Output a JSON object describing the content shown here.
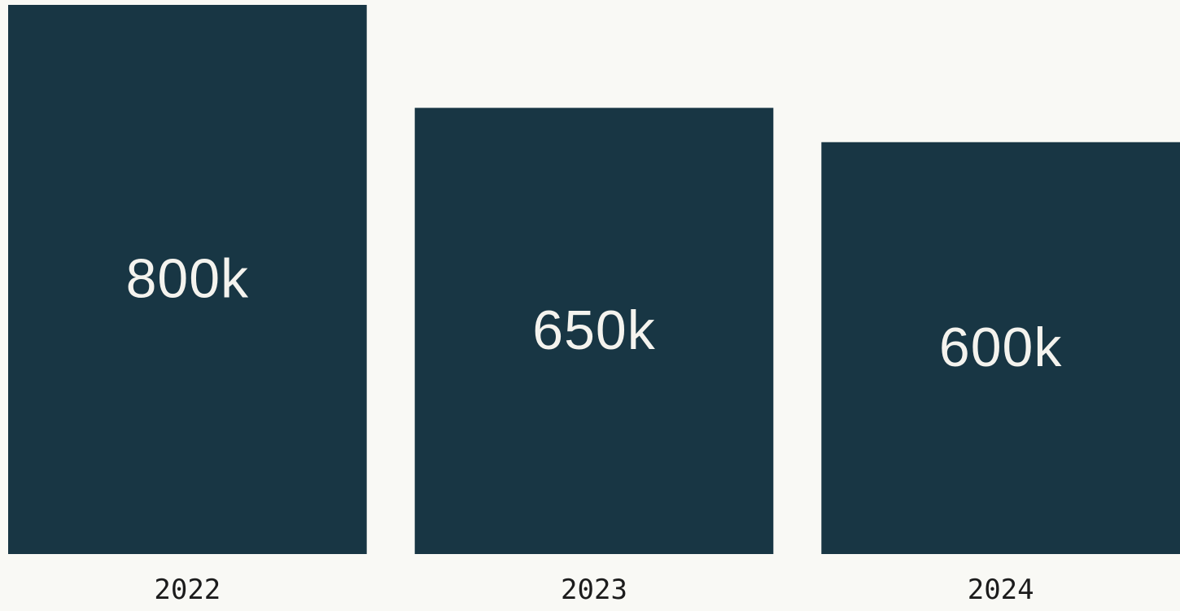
{
  "colors": {
    "background": "#f9f9f5",
    "bar": "#183644",
    "bar_label": "#f4f3ee",
    "tick_label": "#1c1c1c"
  },
  "chart_data": {
    "type": "bar",
    "title": "",
    "xlabel": "",
    "ylabel": "",
    "categories": [
      "2022",
      "2023",
      "2024"
    ],
    "values": [
      800000,
      650000,
      600000
    ],
    "data_labels": [
      "800k",
      "650k",
      "600k"
    ],
    "ylim": [
      0,
      800000
    ],
    "grid": false,
    "legend": "none"
  }
}
